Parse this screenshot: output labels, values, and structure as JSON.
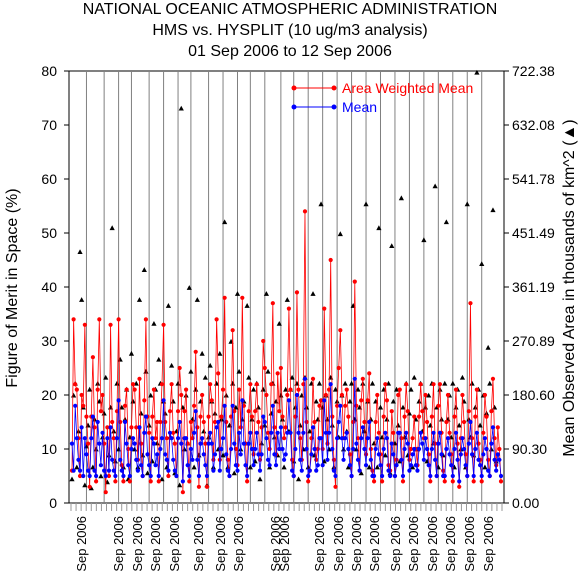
{
  "chart_data": {
    "type": "line",
    "title": "NATIONAL OCEANIC ATMOSPHERIC ADMINISTRATION",
    "subtitle": "HMS vs. HYSPLIT (10 ug/m3 analysis)",
    "date_range": "01 Sep 2006 to 12 Sep 2006",
    "ylabel": "Figure of Merit in Space (%)",
    "y2label": "Mean Observed Area in thousands of km^2 (▲)",
    "ylim": [
      0,
      80
    ],
    "y_ticks": [
      "0",
      "10",
      "20",
      "30",
      "40",
      "50",
      "60",
      "70",
      "80"
    ],
    "y2lim": [
      0.0,
      722.38
    ],
    "y2_ticks": [
      "0.00",
      "90.30",
      "180.60",
      "270.89",
      "361.19",
      "451.49",
      "541.78",
      "632.08",
      "722.38"
    ],
    "x_tick_labels": [
      "Sep 2006",
      "Sep 2006",
      "Sep 2006",
      "Sep 2006",
      "Sep 2006",
      "Sep 2006",
      "Sep 2006",
      "Sep 2006",
      "Sep 2006",
      "Sep 2006",
      "Sep 2006",
      "Sep 2006",
      "Sep 2006",
      "Sep 2006",
      "Sep 2006",
      "Sep 2006",
      "Sep 2006",
      "Sep 2006",
      "Sep 2006",
      "Sep 2006"
    ],
    "legend": {
      "placement": "top-right"
    },
    "colors": {
      "area_weighted_mean": "#ff0000",
      "mean": "#0000ff",
      "observed_area": "#000000",
      "separators": "#808080"
    },
    "series": [
      {
        "name": "Area Weighted Mean",
        "values": [
          6,
          34,
          22,
          21,
          12,
          5,
          20,
          18,
          33,
          16,
          11,
          3,
          16,
          27,
          14,
          4,
          21,
          34,
          17,
          20,
          11,
          2,
          14,
          5,
          33,
          15,
          12,
          4,
          17,
          34,
          15,
          7,
          4,
          18,
          21,
          10,
          4,
          14,
          22,
          21,
          14,
          8,
          23,
          11,
          5,
          19,
          34,
          16,
          13,
          4,
          16,
          21,
          12,
          15,
          4,
          15,
          22,
          33,
          15,
          12,
          5,
          17,
          22,
          13,
          11,
          5,
          17,
          25,
          20,
          2,
          17,
          21,
          11,
          4,
          15,
          12,
          18,
          28,
          14,
          3,
          16,
          20,
          15,
          11,
          3,
          16,
          22,
          19,
          8,
          15,
          34,
          24,
          8,
          16,
          21,
          38,
          15,
          8,
          5,
          16,
          32,
          17,
          10,
          7,
          21,
          14,
          38,
          18,
          11,
          4,
          17,
          22,
          16,
          9,
          17,
          22,
          15,
          8,
          14,
          30,
          25,
          20,
          13,
          10,
          22,
          37,
          14,
          9,
          24,
          17,
          25,
          16,
          12,
          14,
          20,
          36,
          21,
          8,
          5,
          16,
          39,
          21,
          12,
          8,
          22,
          54,
          15,
          4,
          6,
          12,
          23,
          15,
          8,
          10,
          18,
          19,
          10,
          36,
          20,
          11,
          21,
          45,
          16,
          8,
          3,
          18,
          25,
          32,
          20,
          12,
          18,
          21,
          16,
          9,
          5,
          15,
          41,
          18,
          12,
          6,
          19,
          23,
          15,
          9,
          19,
          24,
          10,
          6,
          4,
          15,
          20,
          13,
          9,
          4,
          16,
          22,
          19,
          7,
          6,
          17,
          13,
          5,
          8,
          20,
          21,
          12,
          4,
          16,
          22,
          17,
          8,
          10,
          12,
          16,
          10,
          7,
          16,
          22,
          17,
          12,
          20,
          15,
          9,
          4,
          16,
          22,
          11,
          5,
          18,
          22,
          13,
          6,
          4,
          15,
          20,
          13,
          9,
          4,
          16,
          21,
          11,
          3,
          12,
          20,
          15,
          9,
          5,
          17,
          37,
          12,
          4,
          16,
          21,
          11,
          8,
          4,
          13,
          20,
          16,
          8,
          5,
          17,
          23,
          12,
          7,
          14,
          10,
          4
        ]
      },
      {
        "name": "Mean",
        "values": [
          11,
          6,
          18,
          12,
          8,
          6,
          14,
          5,
          12,
          9,
          6,
          5,
          12,
          16,
          6,
          5,
          15,
          11,
          7,
          13,
          6,
          5,
          12,
          6,
          14,
          8,
          6,
          5,
          12,
          19,
          8,
          6,
          5,
          15,
          11,
          7,
          5,
          10,
          12,
          11,
          8,
          6,
          14,
          7,
          5,
          13,
          16,
          9,
          7,
          5,
          12,
          11,
          7,
          9,
          5,
          10,
          12,
          19,
          9,
          8,
          6,
          13,
          12,
          8,
          6,
          5,
          12,
          15,
          11,
          4,
          12,
          12,
          7,
          5,
          10,
          8,
          13,
          17,
          8,
          5,
          11,
          12,
          9,
          7,
          5,
          11,
          13,
          11,
          6,
          9,
          14,
          15,
          6,
          10,
          12,
          18,
          9,
          6,
          5,
          10,
          18,
          11,
          7,
          6,
          13,
          9,
          19,
          11,
          7,
          5,
          11,
          13,
          10,
          7,
          10,
          13,
          9,
          6,
          9,
          16,
          15,
          12,
          8,
          7,
          13,
          18,
          9,
          7,
          13,
          10,
          14,
          10,
          8,
          9,
          13,
          19,
          13,
          6,
          5,
          10,
          20,
          13,
          8,
          6,
          13,
          23,
          10,
          5,
          6,
          9,
          14,
          10,
          6,
          7,
          12,
          12,
          7,
          19,
          13,
          8,
          13,
          22,
          10,
          6,
          5,
          12,
          15,
          18,
          12,
          8,
          12,
          13,
          10,
          7,
          5,
          10,
          23,
          11,
          8,
          6,
          12,
          14,
          10,
          7,
          12,
          15,
          8,
          5,
          5,
          10,
          12,
          9,
          7,
          5,
          10,
          13,
          12,
          6,
          5,
          11,
          9,
          5,
          7,
          13,
          13,
          8,
          5,
          10,
          13,
          11,
          6,
          7,
          9,
          10,
          7,
          6,
          10,
          13,
          11,
          8,
          12,
          10,
          7,
          5,
          10,
          13,
          8,
          5,
          11,
          13,
          9,
          5,
          5,
          10,
          12,
          9,
          7,
          5,
          10,
          13,
          8,
          4,
          9,
          12,
          10,
          7,
          5,
          11,
          15,
          9,
          5,
          10,
          13,
          8,
          7,
          5,
          9,
          12,
          10,
          6,
          5,
          11,
          14,
          8,
          6,
          9,
          8,
          5
        ]
      },
      {
        "name": "Mean Observed Area",
        "axis": "right",
        "values": [
          40,
          180,
          200,
          60,
          120,
          420,
          340,
          160,
          30,
          95,
          130,
          190,
          25,
          60,
          140,
          90,
          200,
          170,
          45,
          110,
          150,
          210,
          35,
          80,
          160,
          460,
          120,
          70,
          200,
          90,
          240,
          160,
          60,
          140,
          190,
          40,
          110,
          250,
          170,
          90,
          200,
          60,
          340,
          150,
          80,
          390,
          220,
          50,
          130,
          180,
          70,
          300,
          190,
          100,
          240,
          200,
          40,
          170,
          150,
          60,
          330,
          110,
          230,
          170,
          50,
          120,
          200,
          30,
          660,
          160,
          90,
          180,
          100,
          360,
          220,
          140,
          60,
          190,
          340,
          80,
          170,
          250,
          120,
          210,
          30,
          110,
          230,
          170,
          60,
          150,
          200,
          90,
          250,
          140,
          80,
          470,
          180,
          60,
          130,
          270,
          200,
          50,
          160,
          350,
          220,
          90,
          140,
          170,
          100,
          330,
          210,
          60,
          140,
          190,
          70,
          200,
          160,
          40,
          100,
          190,
          130,
          350,
          220,
          60,
          150,
          200,
          110,
          170,
          80,
          300,
          180,
          140,
          60,
          190,
          340,
          120,
          190,
          210,
          70,
          160,
          200,
          40,
          130,
          180,
          90,
          210,
          160,
          60,
          120,
          200,
          350,
          80,
          170,
          140,
          200,
          500,
          160,
          70,
          180,
          140,
          90,
          210,
          130,
          60,
          190,
          170,
          110,
          450,
          180,
          90,
          200,
          120,
          60,
          170,
          200,
          330,
          140,
          90,
          190,
          160,
          50,
          200,
          120,
          500,
          170,
          60,
          140,
          200,
          100,
          170,
          60,
          460,
          160,
          110,
          190,
          80,
          140,
          200,
          50,
          430,
          170,
          100,
          190,
          130,
          70,
          510,
          160,
          110,
          200,
          80,
          150,
          190,
          60,
          210,
          140,
          90,
          170,
          200,
          120,
          440,
          160,
          70,
          180,
          130,
          200,
          100,
          530,
          160,
          60,
          190,
          140,
          80,
          200,
          470,
          140,
          180,
          110,
          200,
          60,
          160,
          190,
          130,
          90,
          210,
          170,
          60,
          500,
          140,
          110,
          200,
          80,
          160,
          720,
          190,
          130,
          400,
          180,
          60,
          150,
          260,
          200,
          90,
          490,
          160,
          70
        ]
      }
    ],
    "separator_positions_index": [
      9,
      20,
      29,
      37,
      48,
      57,
      66,
      74,
      85,
      94,
      103,
      111,
      120,
      130,
      138,
      147,
      156,
      165,
      174,
      183,
      192,
      201,
      210,
      219,
      228,
      237,
      246,
      255
    ]
  }
}
